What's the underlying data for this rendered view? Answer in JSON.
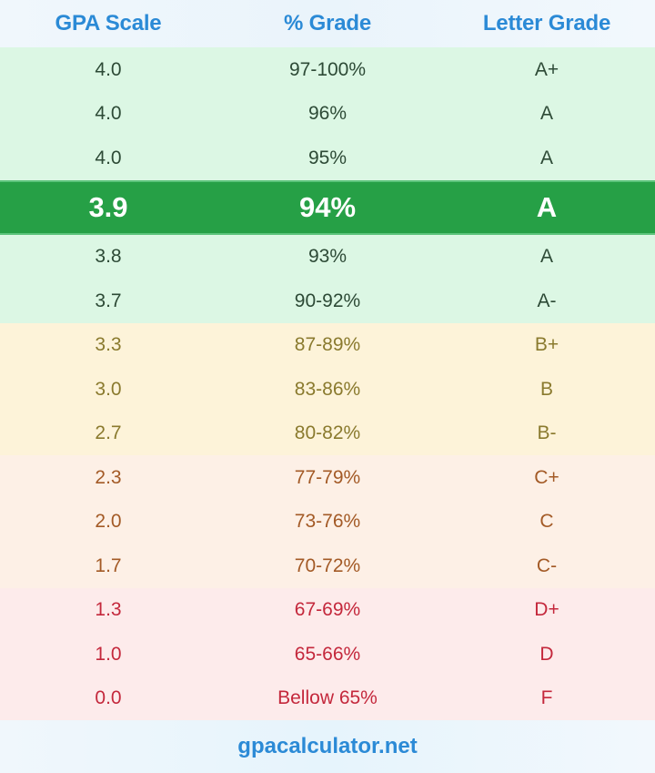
{
  "header": {
    "col1": "GPA Scale",
    "col2": "% Grade",
    "col3": "Letter Grade"
  },
  "rows": [
    {
      "gpa": "4.0",
      "percent": "97-100%",
      "letter": "A+",
      "group": "green"
    },
    {
      "gpa": "4.0",
      "percent": "96%",
      "letter": "A",
      "group": "green"
    },
    {
      "gpa": "4.0",
      "percent": "95%",
      "letter": "A",
      "group": "green"
    },
    {
      "gpa": "3.9",
      "percent": "94%",
      "letter": "A",
      "group": "highlight"
    },
    {
      "gpa": "3.8",
      "percent": "93%",
      "letter": "A",
      "group": "green"
    },
    {
      "gpa": "3.7",
      "percent": "90-92%",
      "letter": "A-",
      "group": "green"
    },
    {
      "gpa": "3.3",
      "percent": "87-89%",
      "letter": "B+",
      "group": "yellow"
    },
    {
      "gpa": "3.0",
      "percent": "83-86%",
      "letter": "B",
      "group": "yellow"
    },
    {
      "gpa": "2.7",
      "percent": "80-82%",
      "letter": "B-",
      "group": "yellow"
    },
    {
      "gpa": "2.3",
      "percent": "77-79%",
      "letter": "C+",
      "group": "orange"
    },
    {
      "gpa": "2.0",
      "percent": "73-76%",
      "letter": "C",
      "group": "orange"
    },
    {
      "gpa": "1.7",
      "percent": "70-72%",
      "letter": "C-",
      "group": "orange"
    },
    {
      "gpa": "1.3",
      "percent": "67-69%",
      "letter": "D+",
      "group": "red"
    },
    {
      "gpa": "1.0",
      "percent": "65-66%",
      "letter": "D",
      "group": "red"
    },
    {
      "gpa": "0.0",
      "percent": "Bellow 65%",
      "letter": "F",
      "group": "red"
    }
  ],
  "footer": {
    "site": "gpacalculator.net"
  },
  "colors": {
    "header_text": "#2b8ad6",
    "highlight_bg": "#26a046",
    "green_bg": "#dcf7e4",
    "yellow_bg": "#fdf3d9",
    "orange_bg": "#fdf0e6",
    "red_bg": "#fdebeb"
  }
}
